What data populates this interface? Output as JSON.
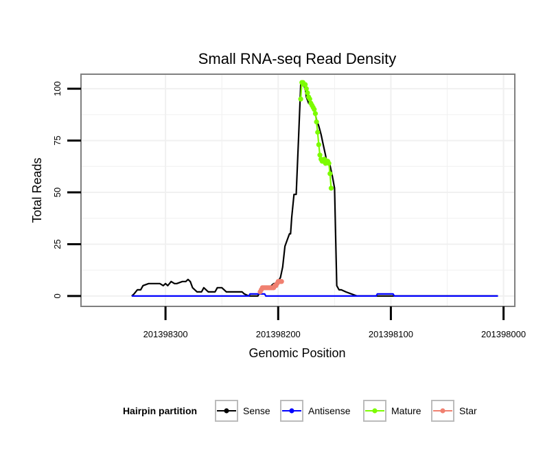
{
  "chart_data": {
    "type": "line",
    "title": "Small RNA-seq Read Density",
    "xlabel": "Genomic Position",
    "ylabel": "Total Reads",
    "xlim": [
      201398375,
      201397990
    ],
    "ylim": [
      -5,
      107
    ],
    "x_reversed": true,
    "x_ticks": [
      201398300,
      201398200,
      201398100,
      201398000
    ],
    "x_tick_labels": [
      "201398300",
      "201398200",
      "201398100",
      "201398000"
    ],
    "y_ticks": [
      0,
      25,
      50,
      75,
      100
    ],
    "y_tick_labels": [
      "0",
      "25",
      "50",
      "75",
      "100"
    ],
    "grid": true,
    "legend": {
      "title": "Hairpin partition",
      "position": "bottom",
      "entries": [
        {
          "name": "Sense",
          "color": "#000000"
        },
        {
          "name": "Antisense",
          "color": "#0000ff"
        },
        {
          "name": "Mature",
          "color": "#7cfc00"
        },
        {
          "name": "Star",
          "color": "#f08070"
        }
      ]
    },
    "series": [
      {
        "name": "Sense",
        "color": "#000000",
        "style": "line",
        "x": [
          201398330,
          201398328,
          201398325,
          201398322,
          201398320,
          201398315,
          201398310,
          201398305,
          201398302,
          201398300,
          201398298,
          201398295,
          201398292,
          201398290,
          201398285,
          201398282,
          201398280,
          201398278,
          201398276,
          201398272,
          201398268,
          201398266,
          201398262,
          201398256,
          201398254,
          201398250,
          201398246,
          201398244,
          201398240,
          201398236,
          201398232,
          201398230,
          201398226,
          201398222,
          201398220,
          201398218,
          201398216,
          201398212,
          201398208,
          201398204,
          201398202,
          201398200,
          201398198,
          201398196,
          201398194,
          201398192,
          201398190,
          201398189,
          201398188,
          201398186,
          201398184,
          201398182,
          201398180,
          201398178,
          201398176,
          201398175,
          201398173,
          201398170,
          201398168,
          201398166,
          201398164,
          201398162,
          201398160,
          201398158,
          201398157,
          201398156,
          201398154,
          201398152,
          201398150,
          201398148,
          201398146,
          201398144,
          201398140,
          201398130,
          201398120,
          201398100,
          201398080,
          201398060,
          201398040,
          201398020,
          201398005
        ],
        "y": [
          0,
          1,
          3,
          3,
          5,
          6,
          6,
          6,
          5,
          6,
          5,
          7,
          6,
          6,
          7,
          7,
          8,
          7,
          4,
          2,
          2,
          4,
          2,
          2,
          4,
          4,
          2,
          2,
          2,
          2,
          2,
          1,
          0,
          0,
          0,
          0,
          2,
          4,
          4,
          6,
          6,
          7,
          9,
          14,
          24,
          27,
          30,
          30,
          38,
          49,
          49,
          75,
          102,
          102,
          100,
          96,
          93,
          92,
          90,
          85,
          82,
          78,
          73,
          68,
          65,
          65,
          63,
          58,
          52,
          5,
          3,
          3,
          2,
          0,
          0,
          0,
          0,
          0,
          0,
          0,
          0
        ]
      },
      {
        "name": "Antisense",
        "color": "#0000ff",
        "style": "line",
        "x": [
          201398330,
          201398226,
          201398225,
          201398212,
          201398211,
          201398113,
          201398112,
          201398098,
          201398097,
          201398005
        ],
        "y": [
          0,
          0,
          1,
          1,
          0,
          0,
          1,
          1,
          0,
          0
        ]
      },
      {
        "name": "Mature",
        "color": "#7cfc00",
        "style": "points",
        "x": [
          201398180,
          201398179,
          201398178,
          201398177,
          201398176,
          201398175,
          201398174,
          201398173,
          201398172,
          201398171,
          201398170,
          201398169,
          201398168,
          201398167,
          201398166,
          201398165,
          201398164,
          201398163,
          201398162,
          201398161,
          201398160,
          201398159,
          201398158,
          201398157,
          201398156,
          201398155,
          201398154,
          201398153
        ],
        "y": [
          95,
          103,
          103,
          102,
          102,
          100,
          98,
          96,
          95,
          93,
          92,
          91,
          90,
          88,
          84,
          79,
          73,
          68,
          66,
          65,
          65,
          66,
          64,
          65,
          65,
          64,
          59,
          52
        ]
      },
      {
        "name": "Star",
        "color": "#f08070",
        "style": "points",
        "x": [
          201398216,
          201398215,
          201398214,
          201398213,
          201398212,
          201398211,
          201398210,
          201398209,
          201398208,
          201398207,
          201398206,
          201398205,
          201398204,
          201398203,
          201398202,
          201398201,
          201398200,
          201398199,
          201398198,
          201398197
        ],
        "y": [
          2,
          3,
          4,
          4,
          4,
          4,
          4,
          4,
          4,
          4,
          4,
          4,
          4,
          5,
          5,
          6,
          7,
          7,
          7,
          7
        ]
      }
    ]
  }
}
